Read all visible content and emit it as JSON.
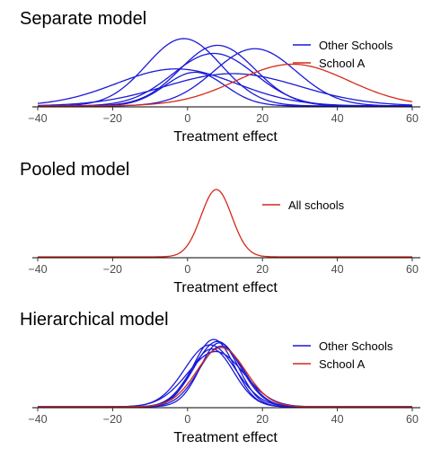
{
  "colors": {
    "other": "#1a1ad6",
    "schoolA": "#d42a18",
    "axis": "#000000",
    "tick_text": "#4d4d4d"
  },
  "chart_data": [
    {
      "type": "line",
      "title": "Separate model",
      "xlabel": "Treatment effect",
      "xlim": [
        -42,
        62
      ],
      "xticks": [
        -40,
        -20,
        0,
        20,
        40,
        60
      ],
      "legend": {
        "placement": "top-right",
        "entries": [
          "Other Schools",
          "School A"
        ]
      },
      "series": [
        {
          "name": "School A",
          "group": "School A",
          "color": "#d42a18",
          "mean": 28,
          "sd": 15,
          "peak": 0.62
        },
        {
          "group": "Other Schools",
          "color": "#1a1ad6",
          "mean": -1,
          "sd": 10,
          "peak": 1.0
        },
        {
          "group": "Other Schools",
          "color": "#1a1ad6",
          "mean": 8,
          "sd": 10,
          "peak": 0.9
        },
        {
          "group": "Other Schools",
          "color": "#1a1ad6",
          "mean": 18,
          "sd": 11,
          "peak": 0.85
        },
        {
          "group": "Other Schools",
          "color": "#1a1ad6",
          "mean": 7,
          "sd": 11,
          "peak": 0.78
        },
        {
          "group": "Other Schools",
          "color": "#1a1ad6",
          "mean": -3,
          "sd": 16,
          "peak": 0.55
        },
        {
          "group": "Other Schools",
          "color": "#1a1ad6",
          "mean": 12,
          "sd": 18,
          "peak": 0.48
        },
        {
          "group": "Other Schools",
          "color": "#1a1ad6",
          "mean": 2,
          "sd": 8,
          "peak": 0.5
        }
      ]
    },
    {
      "type": "line",
      "title": "Pooled model",
      "xlabel": "Treatment effect",
      "xlim": [
        -42,
        62
      ],
      "xticks": [
        -40,
        -20,
        0,
        20,
        40,
        60
      ],
      "legend": {
        "placement": "top-right",
        "entries": [
          "All schools"
        ]
      },
      "series": [
        {
          "name": "All schools",
          "group": "All schools",
          "color": "#d42a18",
          "mean": 7.7,
          "sd": 4.1,
          "peak": 1.0
        }
      ]
    },
    {
      "type": "line",
      "title": "Hierarchical model",
      "xlabel": "Treatment effect",
      "xlim": [
        -42,
        62
      ],
      "xticks": [
        -40,
        -20,
        0,
        20,
        40,
        60
      ],
      "legend": {
        "placement": "top-right",
        "entries": [
          "Other Schools",
          "School A"
        ]
      },
      "series": [
        {
          "name": "School A",
          "group": "School A",
          "color": "#d42a18",
          "mean": 9,
          "sd": 6.5,
          "peak": 0.88
        },
        {
          "group": "Other Schools",
          "color": "#1a1ad6",
          "mean": 7,
          "sd": 5.5,
          "peak": 1.0
        },
        {
          "group": "Other Schools",
          "color": "#1a1ad6",
          "mean": 8,
          "sd": 6.2,
          "peak": 0.97
        },
        {
          "group": "Other Schools",
          "color": "#1a1ad6",
          "mean": 6,
          "sd": 6.8,
          "peak": 0.92
        },
        {
          "group": "Other Schools",
          "color": "#1a1ad6",
          "mean": 8.5,
          "sd": 5.2,
          "peak": 0.95
        },
        {
          "group": "Other Schools",
          "color": "#1a1ad6",
          "mean": 7.5,
          "sd": 7.5,
          "peak": 0.82
        },
        {
          "group": "Other Schools",
          "color": "#1a1ad6",
          "mean": 9,
          "sd": 6.0,
          "peak": 0.9
        },
        {
          "group": "Other Schools",
          "color": "#1a1ad6",
          "mean": 6.5,
          "sd": 5.8,
          "peak": 0.86
        }
      ]
    }
  ]
}
